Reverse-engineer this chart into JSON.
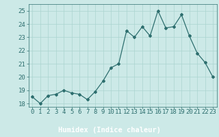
{
  "x": [
    0,
    1,
    2,
    3,
    4,
    5,
    6,
    7,
    8,
    9,
    10,
    11,
    12,
    13,
    14,
    15,
    16,
    17,
    18,
    19,
    20,
    21,
    22,
    23
  ],
  "y": [
    18.5,
    18.0,
    18.6,
    18.7,
    19.0,
    18.8,
    18.7,
    18.3,
    18.9,
    19.7,
    20.7,
    21.0,
    23.5,
    23.0,
    23.8,
    23.1,
    25.0,
    23.7,
    23.8,
    24.7,
    23.1,
    21.8,
    21.1,
    20.0
  ],
  "xlabel": "Humidex (Indice chaleur)",
  "ylim": [
    17.75,
    25.5
  ],
  "xlim": [
    -0.5,
    23.5
  ],
  "yticks": [
    18,
    19,
    20,
    21,
    22,
    23,
    24,
    25
  ],
  "xticks": [
    0,
    1,
    2,
    3,
    4,
    5,
    6,
    7,
    8,
    9,
    10,
    11,
    12,
    13,
    14,
    15,
    16,
    17,
    18,
    19,
    20,
    21,
    22,
    23
  ],
  "line_color": "#2d6e6e",
  "marker": "D",
  "marker_size": 2.0,
  "bg_color": "#cce9e7",
  "grid_color": "#aad4d0",
  "xlabel_bg": "#5ba8a0",
  "label_color": "#2d6e6e",
  "xlabel_fontsize": 7.5,
  "tick_fontsize": 6.5,
  "linewidth": 0.9
}
